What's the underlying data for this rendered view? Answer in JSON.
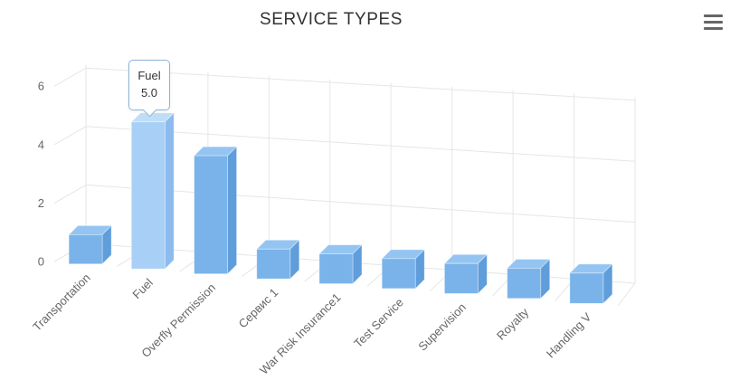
{
  "chart_data": {
    "type": "bar",
    "variant": "3d-column",
    "title": "SERVICE TYPES",
    "categories": [
      "Transportation",
      "Fuel",
      "Overfly Permission",
      "Сервис 1",
      "War Risk Insurance1",
      "Test Service",
      "Supervision",
      "Royalty",
      "Handling V"
    ],
    "values": [
      1,
      5,
      4,
      1,
      1,
      1,
      1,
      1,
      1
    ],
    "highlighted_index": 1,
    "yticks": [
      0,
      2,
      4,
      6
    ],
    "ylim": [
      0,
      6.1
    ],
    "xlabel": "",
    "ylabel": "",
    "legend": "none",
    "grid": true,
    "colors": {
      "bar_front": "#7ab3ea",
      "bar_top": "#94c5f2",
      "bar_side": "#5f9ddb",
      "bar_hover_front": "#a8cff5",
      "bar_hover_top": "#c0ddf8",
      "bar_hover_side": "#8cbbee",
      "grid": "#e6e6e6",
      "axis_label": "#666666",
      "title": "#333333"
    }
  },
  "tooltip": {
    "category": "Fuel",
    "value": "5.0"
  },
  "toolbar": {
    "menu_icon": "hamburger"
  }
}
